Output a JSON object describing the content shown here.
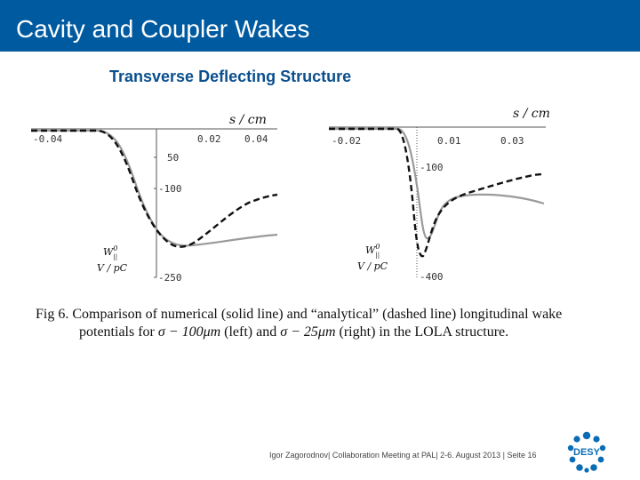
{
  "slide": {
    "title": "Cavity and Coupler Wakes",
    "subtitle": "Transverse Deflecting Structure"
  },
  "plots": {
    "left": {
      "xlabel": "s / cm",
      "x_ticks": [
        "-0.04",
        "0.02",
        "0.04"
      ],
      "y_ticks": [
        "50",
        "-100",
        "-250"
      ],
      "y_symbol": "W",
      "y_symbol_sup": "0",
      "y_symbol_sub": "||",
      "ylabel_unit": "V / pC"
    },
    "right": {
      "xlabel": "s / cm",
      "x_ticks": [
        "-0.02",
        "0.01",
        "0.03"
      ],
      "y_ticks": [
        "-100",
        "-400"
      ],
      "y_symbol": "W",
      "y_symbol_sup": "0",
      "y_symbol_sub": "||",
      "ylabel_unit": "V / pC"
    },
    "line_colors": {
      "numerical": "#9a9a9a",
      "analytical": "#111111"
    }
  },
  "caption": {
    "line1": "Fig 6. Comparison of numerical (solid line) and “analytical” (dashed line) longitudinal wake",
    "line2_a": "potentials for ",
    "sigma1": "σ − 100μm",
    "line2_b": " (left) and ",
    "sigma2": "σ − 25μm",
    "line2_c": " (right) in the LOLA structure."
  },
  "footer": {
    "text": "Igor Zagorodnov| Collaboration Meeting at PAL| 2-6. August 2013 | Seite 16"
  },
  "logo": {
    "label": "DESY",
    "color": "#0a6cb5"
  }
}
